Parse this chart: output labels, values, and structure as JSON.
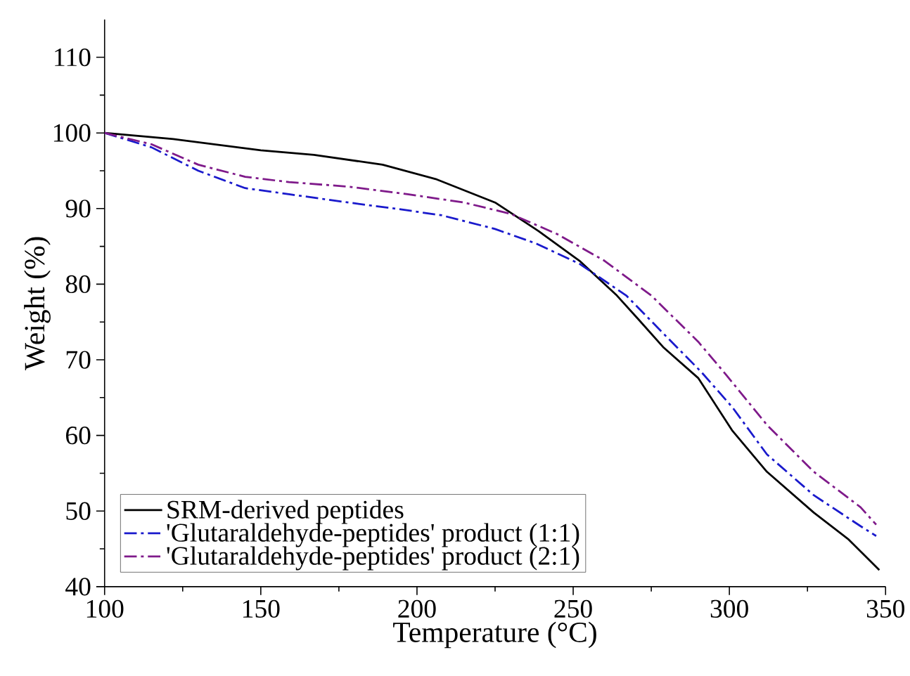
{
  "chart_data": {
    "type": "line",
    "xlabel": "Temperature (°C)",
    "ylabel": "Weight (%)",
    "xlim": [
      100,
      350
    ],
    "ylim": [
      40,
      115
    ],
    "xticks": [
      100,
      150,
      200,
      250,
      300,
      350
    ],
    "yticks": [
      40,
      50,
      60,
      70,
      80,
      90,
      100,
      110
    ],
    "legend": "bottom left",
    "grid": false,
    "series": [
      {
        "name": "SRM-derived peptides",
        "color": "#000000",
        "line_style": "solid",
        "x": [
          100,
          122,
          150,
          167,
          189,
          206,
          225,
          239,
          252,
          264,
          271,
          279,
          290,
          301,
          312,
          327,
          338,
          348
        ],
        "values": [
          100,
          99.2,
          97.7,
          97.1,
          95.8,
          93.9,
          90.8,
          87,
          83.1,
          78.5,
          75.3,
          71.6,
          67.6,
          60.6,
          55.2,
          49.8,
          46.3,
          42.2
        ]
      },
      {
        "name": "'Glutaraldehyde-peptides' product (1:1)",
        "color": "#1a1acc",
        "line_style": "dashdot",
        "x": [
          100,
          115,
          130,
          145,
          159,
          178,
          193,
          208,
          225,
          238,
          252,
          267,
          280,
          291,
          301,
          312,
          327,
          342,
          347
        ],
        "values": [
          100,
          98.1,
          95,
          92.7,
          91.9,
          90.8,
          90,
          89.1,
          87.3,
          85.4,
          82.7,
          78.5,
          73,
          68.4,
          63.7,
          57.5,
          52.1,
          48,
          46.7
        ]
      },
      {
        "name": "'Glutaraldehyde-peptides' product (2:1)",
        "color": "#7f1a8a",
        "line_style": "dashdot",
        "x": [
          100,
          115,
          130,
          145,
          159,
          178,
          197,
          215,
          230,
          245,
          260,
          275,
          290,
          299,
          312,
          327,
          342,
          347
        ],
        "values": [
          100,
          98.5,
          95.8,
          94.2,
          93.5,
          92.9,
          91.9,
          90.8,
          89.3,
          86.6,
          83.1,
          78.5,
          72.4,
          68,
          61.4,
          55.2,
          50.5,
          48.2
        ]
      }
    ]
  }
}
